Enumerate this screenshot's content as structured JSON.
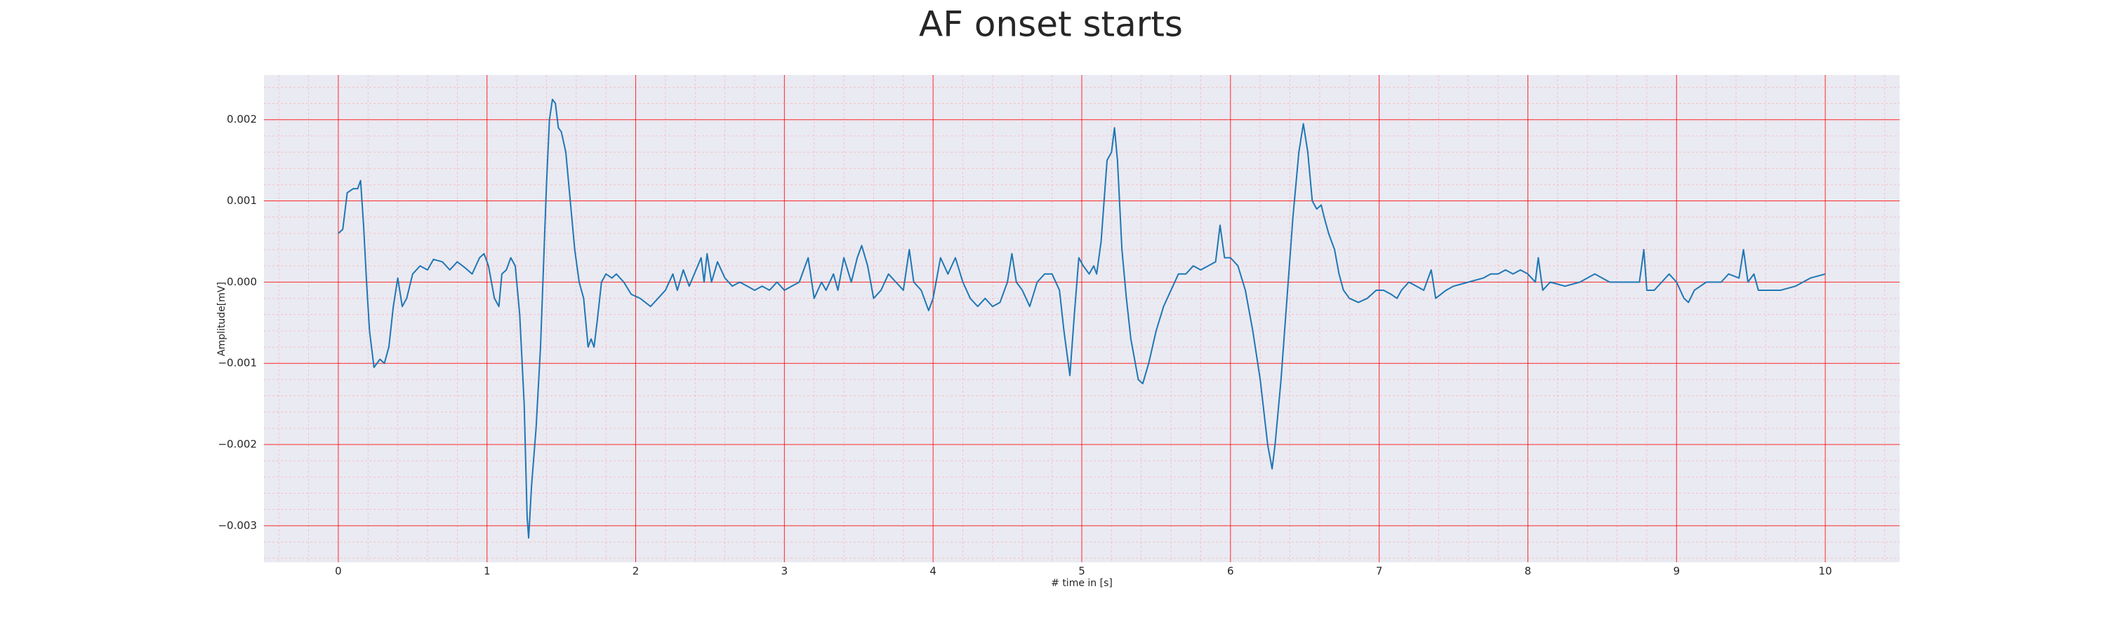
{
  "chart_data": {
    "type": "line",
    "title": "AF onset starts",
    "x_label": "# time in [s]",
    "y_label": "Amplitude[mV]",
    "color": "#1f77b4",
    "background": "#eaeaf2",
    "grid": true,
    "grid_color": "#ff0000",
    "minor_grid": true,
    "minor_grid_color": "#ff9999",
    "xlim": [
      -0.5,
      10.5
    ],
    "ylim": [
      -0.00345,
      0.00255
    ],
    "xticks": [
      0,
      1,
      2,
      3,
      4,
      5,
      6,
      7,
      8,
      9,
      10
    ],
    "yticks": [
      {
        "value": -0.003,
        "label": "−0.003"
      },
      {
        "value": -0.002,
        "label": "−0.002"
      },
      {
        "value": -0.001,
        "label": "−0.001"
      },
      {
        "value": 0,
        "label": "0.000"
      },
      0.001,
      0.002
    ],
    "x": [
      0,
      0.03,
      0.06,
      0.1,
      0.13,
      0.15,
      0.17,
      0.19,
      0.21,
      0.24,
      0.28,
      0.31,
      0.34,
      0.37,
      0.4,
      0.43,
      0.46,
      0.5,
      0.55,
      0.6,
      0.64,
      0.7,
      0.75,
      0.8,
      0.85,
      0.9,
      0.95,
      0.98,
      1.01,
      1.05,
      1.08,
      1.1,
      1.13,
      1.16,
      1.19,
      1.22,
      1.25,
      1.27,
      1.28,
      1.3,
      1.33,
      1.36,
      1.38,
      1.4,
      1.42,
      1.44,
      1.46,
      1.48,
      1.5,
      1.53,
      1.56,
      1.59,
      1.62,
      1.65,
      1.68,
      1.7,
      1.72,
      1.74,
      1.77,
      1.8,
      1.84,
      1.87,
      1.92,
      1.97,
      2.03,
      2.1,
      2.15,
      2.2,
      2.25,
      2.28,
      2.32,
      2.36,
      2.44,
      2.46,
      2.48,
      2.51,
      2.55,
      2.6,
      2.65,
      2.7,
      2.75,
      2.8,
      2.85,
      2.9,
      2.95,
      3.0,
      3.05,
      3.1,
      3.16,
      3.2,
      3.25,
      3.28,
      3.33,
      3.36,
      3.4,
      3.45,
      3.49,
      3.52,
      3.56,
      3.6,
      3.65,
      3.7,
      3.75,
      3.8,
      3.84,
      3.87,
      3.92,
      3.97,
      4.0,
      4.05,
      4.1,
      4.15,
      4.2,
      4.25,
      4.3,
      4.35,
      4.4,
      4.45,
      4.5,
      4.53,
      4.56,
      4.6,
      4.65,
      4.7,
      4.75,
      4.8,
      4.85,
      4.88,
      4.92,
      4.95,
      4.98,
      5.01,
      5.05,
      5.08,
      5.1,
      5.13,
      5.17,
      5.2,
      5.22,
      5.24,
      5.27,
      5.3,
      5.33,
      5.38,
      5.41,
      5.45,
      5.5,
      5.55,
      5.6,
      5.65,
      5.7,
      5.75,
      5.8,
      5.85,
      5.9,
      5.93,
      5.96,
      6.0,
      6.05,
      6.1,
      6.15,
      6.2,
      6.25,
      6.28,
      6.3,
      6.34,
      6.38,
      6.42,
      6.46,
      6.49,
      6.52,
      6.55,
      6.58,
      6.61,
      6.63,
      6.66,
      6.7,
      6.73,
      6.76,
      6.8,
      6.86,
      6.92,
      6.98,
      7.03,
      7.08,
      7.12,
      7.15,
      7.2,
      7.3,
      7.35,
      7.38,
      7.45,
      7.5,
      7.6,
      7.7,
      7.75,
      7.8,
      7.85,
      7.9,
      7.95,
      8.0,
      8.05,
      8.07,
      8.1,
      8.15,
      8.25,
      8.35,
      8.45,
      8.55,
      8.65,
      8.75,
      8.78,
      8.8,
      8.85,
      8.9,
      8.95,
      9.0,
      9.05,
      9.08,
      9.12,
      9.2,
      9.3,
      9.35,
      9.42,
      9.45,
      9.48,
      9.52,
      9.55,
      9.6,
      9.7,
      9.8,
      9.9,
      10.0
    ],
    "values": [
      0.0006,
      0.00065,
      0.0011,
      0.00115,
      0.00115,
      0.00125,
      0.0007,
      0.0,
      -0.0006,
      -0.00105,
      -0.00095,
      -0.001,
      -0.0008,
      -0.0003,
      5e-05,
      -0.0003,
      -0.0002,
      0.0001,
      0.0002,
      0.00015,
      0.00028,
      0.00025,
      0.00015,
      0.00025,
      0.00018,
      0.0001,
      0.0003,
      0.00035,
      0.0002,
      -0.0002,
      -0.0003,
      0.0001,
      0.00015,
      0.0003,
      0.0002,
      -0.0004,
      -0.0015,
      -0.0029,
      -0.00315,
      -0.0025,
      -0.0018,
      -0.0008,
      0.0002,
      0.0012,
      0.002,
      0.00225,
      0.0022,
      0.0019,
      0.00185,
      0.0016,
      0.001,
      0.0004,
      0.0,
      -0.0002,
      -0.0008,
      -0.0007,
      -0.0008,
      -0.0005,
      0.0,
      0.0001,
      5e-05,
      0.0001,
      0.0,
      -0.00015,
      -0.0002,
      -0.0003,
      -0.0002,
      -0.0001,
      0.0001,
      -0.0001,
      0.00015,
      -5e-05,
      0.0003,
      0.0,
      0.00035,
      0.0,
      0.00025,
      5e-05,
      -5e-05,
      0.0,
      -5e-05,
      -0.0001,
      -5e-05,
      -0.0001,
      0.0,
      -0.0001,
      -5e-05,
      0.0,
      0.0003,
      -0.0002,
      0.0,
      -0.0001,
      0.0001,
      -0.0001,
      0.0003,
      0.0,
      0.0003,
      0.00045,
      0.0002,
      -0.0002,
      -0.0001,
      0.0001,
      0.0,
      -0.0001,
      0.0004,
      0.0,
      -0.0001,
      -0.00035,
      -0.0002,
      0.0003,
      0.0001,
      0.0003,
      0.0,
      -0.0002,
      -0.0003,
      -0.0002,
      -0.0003,
      -0.00025,
      0.0,
      0.00035,
      0.0,
      -0.0001,
      -0.0003,
      0.0,
      0.0001,
      0.0001,
      -0.0001,
      -0.0006,
      -0.00115,
      -0.0004,
      0.0003,
      0.0002,
      0.0001,
      0.0002,
      0.0001,
      0.0005,
      0.0015,
      0.0016,
      0.0019,
      0.0015,
      0.0004,
      -0.0002,
      -0.0007,
      -0.0012,
      -0.00125,
      -0.001,
      -0.0006,
      -0.0003,
      -0.0001,
      0.0001,
      0.0001,
      0.0002,
      0.00015,
      0.0002,
      0.00025,
      0.0007,
      0.0003,
      0.0003,
      0.0002,
      -0.0001,
      -0.0006,
      -0.0012,
      -0.002,
      -0.0023,
      -0.002,
      -0.0012,
      -0.0002,
      0.0008,
      0.0016,
      0.00195,
      0.0016,
      0.001,
      0.0009,
      0.00095,
      0.0008,
      0.0006,
      0.0004,
      0.0001,
      -0.0001,
      -0.0002,
      -0.00025,
      -0.0002,
      -0.0001,
      -0.0001,
      -0.00015,
      -0.0002,
      -0.0001,
      0.0,
      -0.0001,
      0.00015,
      -0.0002,
      -0.0001,
      -5e-05,
      0.0,
      5e-05,
      0.0001,
      0.0001,
      0.00015,
      0.0001,
      0.00015,
      0.0001,
      0.0,
      0.0003,
      -0.0001,
      0.0,
      -5e-05,
      0.0,
      0.0001,
      0.0,
      0.0,
      0.0,
      0.0004,
      -0.0001,
      -0.0001,
      0.0,
      0.0001,
      0.0,
      -0.0002,
      -0.00025,
      -0.0001,
      0.0,
      0.0,
      0.0001,
      5e-05,
      0.0004,
      0.0,
      0.0001,
      -0.0001,
      -0.0001,
      -0.0001,
      -5e-05,
      5e-05,
      0.0001
    ]
  }
}
